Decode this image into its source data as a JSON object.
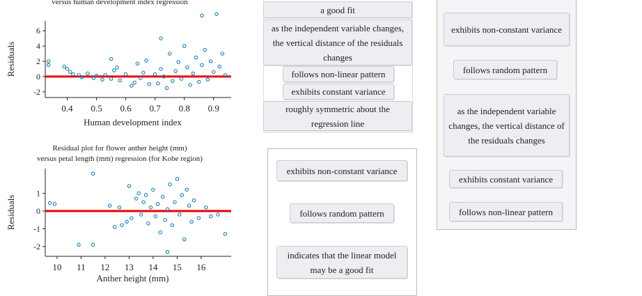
{
  "plots": [
    {
      "title_lines": [
        "versus human development index regression"
      ],
      "ylabel": "Residuals",
      "xlabel": "Human development index",
      "xlim": [
        0.325,
        0.96
      ],
      "ylim": [
        -2.75,
        7.3
      ],
      "xticks": [
        0.4,
        0.5,
        0.6,
        0.7,
        0.8,
        0.9
      ],
      "yticks": [
        6,
        4,
        2,
        0,
        -2
      ],
      "points": {
        "x": [
          0.336,
          0.336,
          0.39,
          0.4,
          0.41,
          0.42,
          0.44,
          0.45,
          0.47,
          0.49,
          0.5,
          0.52,
          0.53,
          0.55,
          0.56,
          0.57,
          0.58,
          0.6,
          0.62,
          0.63,
          0.65,
          0.66,
          0.67,
          0.68,
          0.7,
          0.71,
          0.72,
          0.73,
          0.74,
          0.75,
          0.76,
          0.77,
          0.78,
          0.79,
          0.8,
          0.81,
          0.82,
          0.83,
          0.84,
          0.85,
          0.86,
          0.87,
          0.88,
          0.89,
          0.9,
          0.91,
          0.92,
          0.93,
          0.94,
          0.86,
          0.72,
          0.55,
          0.64
        ],
        "y": [
          2.0,
          1.5,
          1.3,
          1.0,
          0.6,
          0.3,
          0.2,
          -0.1,
          0.4,
          -0.2,
          0.1,
          -0.4,
          0.2,
          -0.3,
          0.8,
          1.2,
          -0.5,
          0.3,
          -1.2,
          -0.8,
          -0.2,
          0.5,
          2.1,
          -1.0,
          0.3,
          -0.9,
          1.0,
          0.0,
          -1.5,
          3.0,
          -0.6,
          0.7,
          1.9,
          -0.3,
          4.0,
          1.2,
          -1.1,
          0.4,
          2.5,
          -0.7,
          1.5,
          3.5,
          -0.4,
          2.0,
          0.6,
          8.2,
          1.3,
          3.0,
          0.2,
          8.0,
          5.0,
          2.3,
          1.7
        ]
      }
    },
    {
      "title_lines": [
        "Residual plot for flower anther height (mm)",
        "versus petal length (mm) regression (for Kobe region)"
      ],
      "ylabel": "Residuals",
      "xlabel": "Anther height (mm)",
      "xlim": [
        9.51,
        17.25
      ],
      "ylim": [
        -2.55,
        2.39
      ],
      "xticks": [
        10,
        11,
        12,
        13,
        14,
        15,
        16
      ],
      "yticks": [
        1,
        0,
        -1,
        -2
      ],
      "points": {
        "x": [
          9.7,
          9.9,
          10.9,
          11.5,
          11.5,
          12.2,
          12.4,
          12.6,
          12.9,
          13.0,
          13.1,
          13.3,
          13.4,
          13.5,
          13.6,
          13.8,
          13.9,
          14.0,
          14.1,
          14.2,
          14.3,
          14.4,
          14.5,
          14.6,
          14.7,
          14.8,
          14.9,
          15.0,
          15.1,
          15.2,
          15.3,
          15.4,
          15.5,
          15.6,
          15.7,
          15.9,
          16.2,
          16.4,
          16.7,
          17.0,
          14.6,
          12.7,
          13.7
        ],
        "y": [
          0.45,
          0.4,
          -1.9,
          -1.9,
          2.1,
          0.3,
          -0.9,
          0.2,
          -0.6,
          1.4,
          -0.4,
          0.7,
          1.0,
          -0.2,
          0.5,
          -0.7,
          0.2,
          1.2,
          -0.3,
          0.4,
          -1.2,
          0.8,
          -0.5,
          0.1,
          1.5,
          -0.8,
          0.5,
          1.8,
          -0.2,
          0.9,
          -1.6,
          1.2,
          0.3,
          -0.6,
          0.6,
          -0.4,
          0.2,
          -0.3,
          -0.2,
          -1.3,
          -2.3,
          -0.8,
          0.9
        ]
      }
    }
  ],
  "zones": [
    {
      "cards": [
        "a good fit",
        "as the independent variable changes, the vertical distance of the residuals changes",
        "follows non-linear pattern",
        "exhibits constant variance",
        "roughly symmetric about the regression line"
      ]
    },
    {
      "cards": [
        "exhibits non-constant variance",
        "follows random pattern",
        "indicates that the linear model may be a good fit"
      ]
    },
    {
      "cards": [
        "exhibits non-constant variance",
        "follows random pattern",
        "as the independent variable changes, the vertical distance of the residuals changes",
        "exhibits constant variance",
        "follows non-linear pattern"
      ]
    }
  ]
}
